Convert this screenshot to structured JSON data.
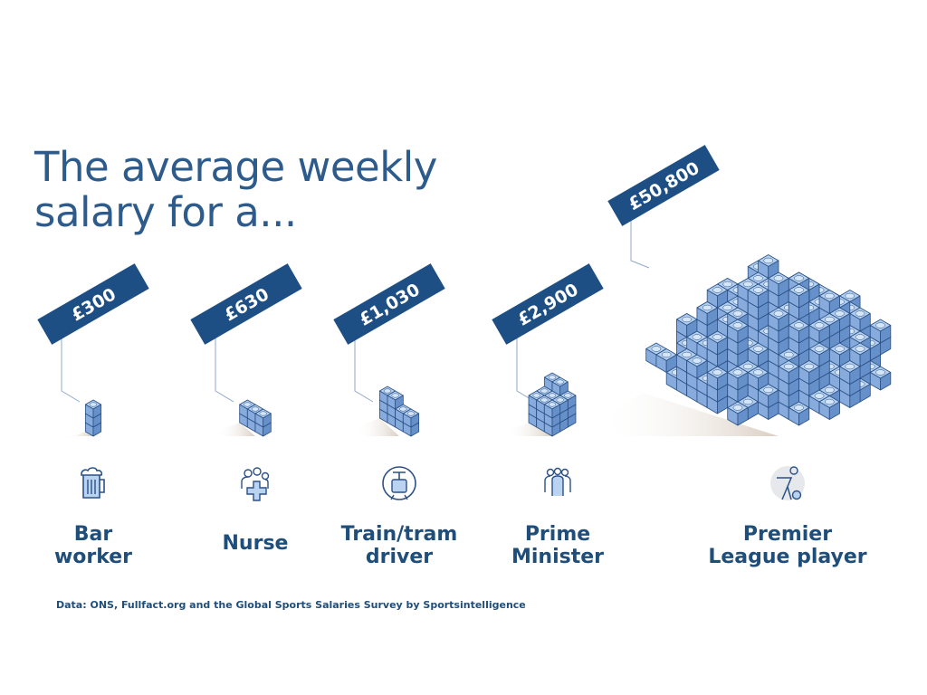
{
  "title_lines": [
    "The average weekly",
    "salary for a..."
  ],
  "source": "Data: ONS, Fullfact.org and the Global Sports Salaries Survey by Sportsintelligence",
  "colors": {
    "banner": "#1d4f85",
    "text": "#1f4e7a",
    "cube_top": "#b3cff0",
    "cube_left": "#86abdc",
    "cube_right": "#6690c9",
    "cube_stroke": "#2b5186",
    "leader": "#8ea9cc"
  },
  "chart_data": {
    "type": "bar",
    "encoding": "isometric cube pile, each cube ≈ £100",
    "title": "The average weekly salary for a...",
    "categories": [
      "Bar worker",
      "Nurse",
      "Train/tram driver",
      "Prime Minister",
      "Premier League player"
    ],
    "category_lines": [
      [
        "Bar",
        "worker"
      ],
      [
        "Nurse"
      ],
      [
        "Train/tram",
        "driver"
      ],
      [
        "Prime",
        "Minister"
      ],
      [
        "Premier",
        "League player"
      ]
    ],
    "values": [
      300,
      630,
      1030,
      2900,
      50800
    ],
    "value_labels": [
      "£300",
      "£630",
      "£1,030",
      "£2,900",
      "£50,800"
    ],
    "icons": [
      "beer-mug-icon",
      "nurse-cross-icon",
      "tram-icon",
      "prime-minister-people-icon",
      "football-player-icon"
    ]
  }
}
